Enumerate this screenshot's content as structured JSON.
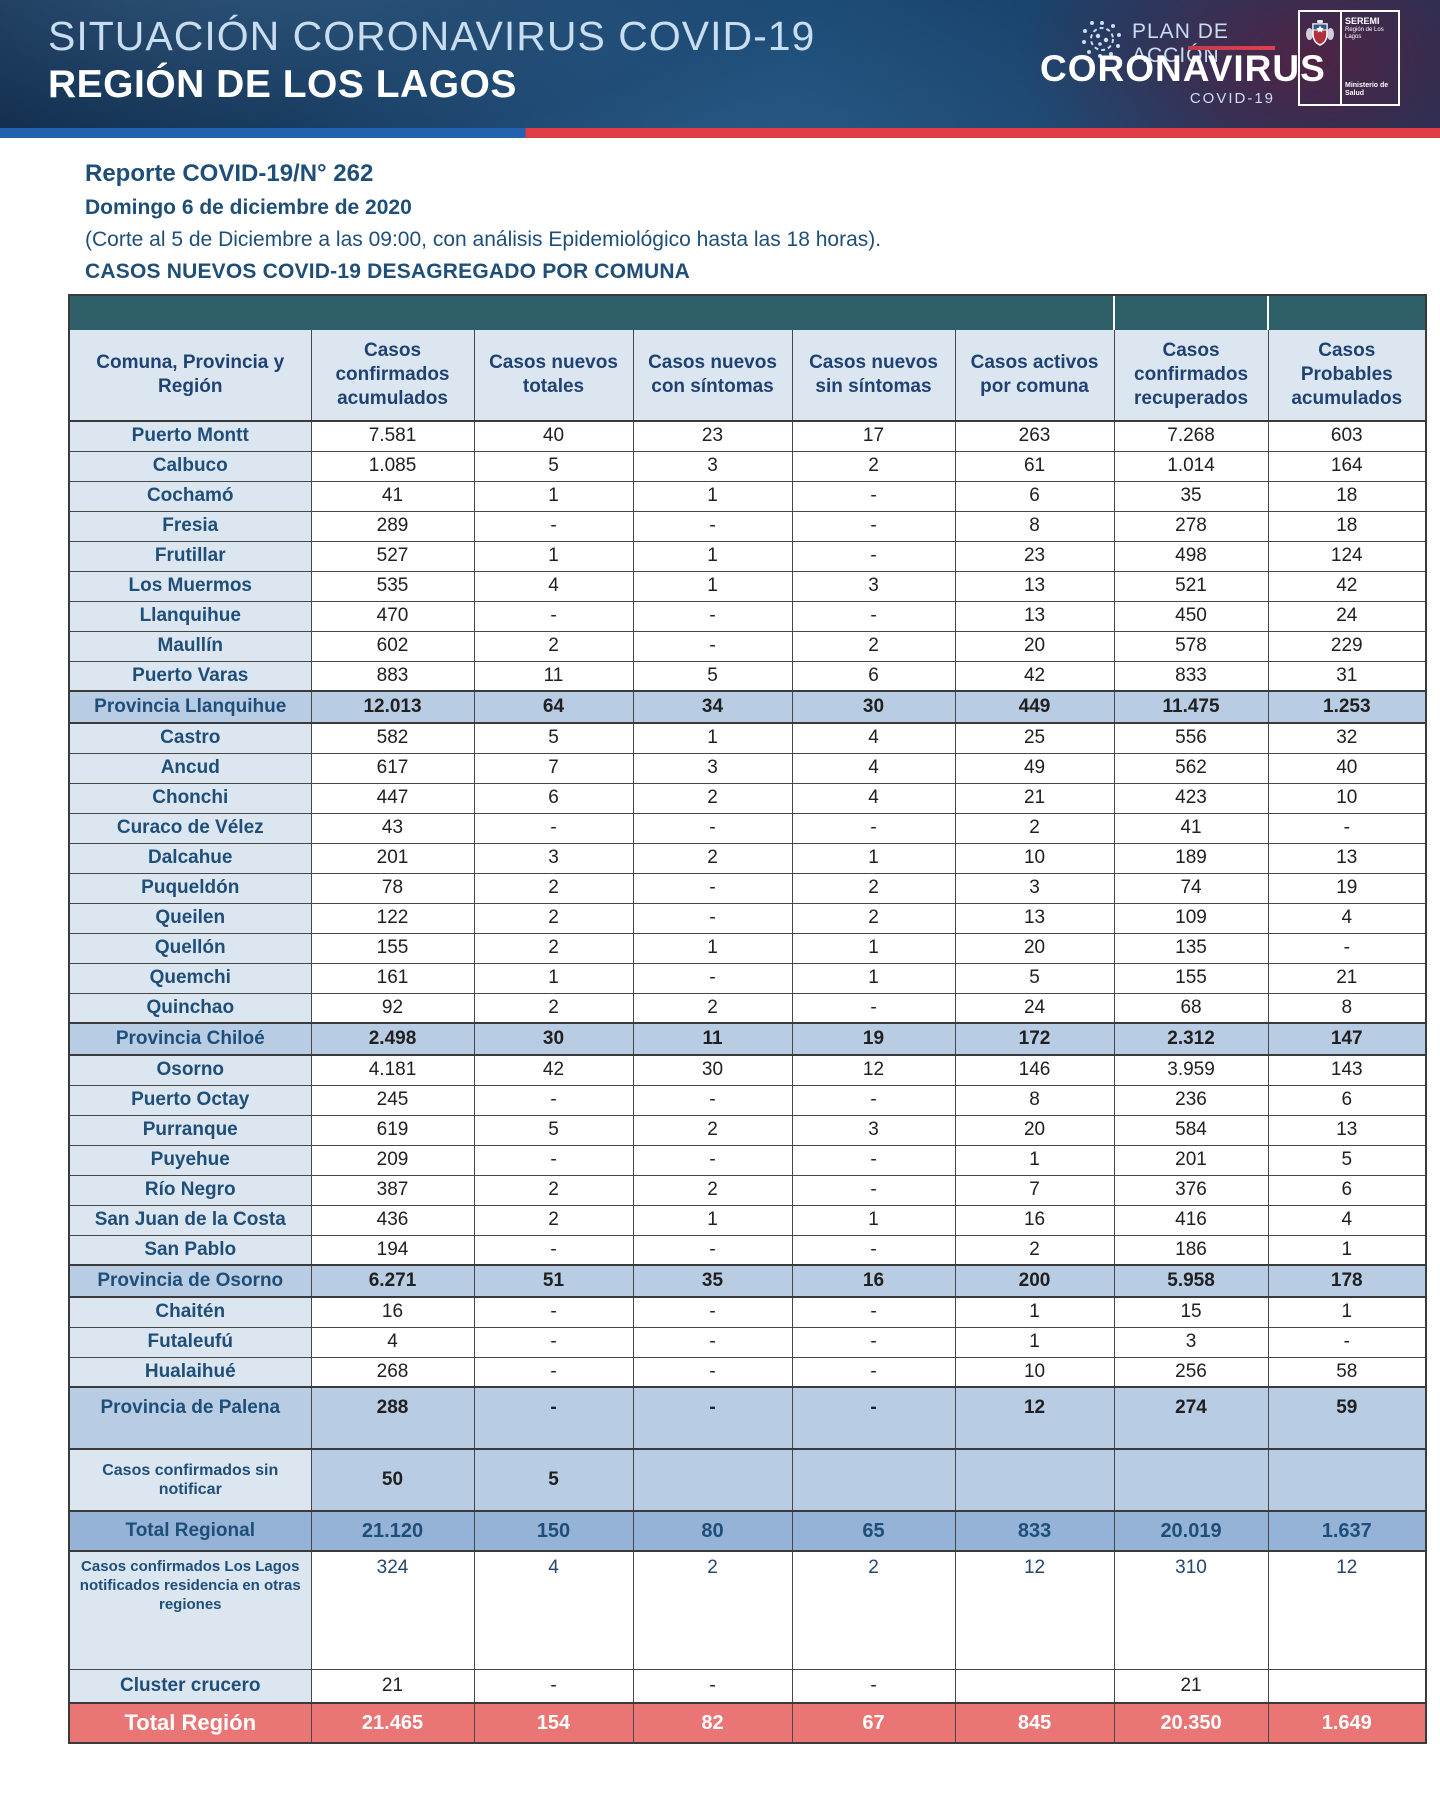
{
  "banner": {
    "title_line1": "SITUACIÓN CORONAVIRUS COVID-19",
    "title_line2": "REGIÓN DE LOS LAGOS",
    "plan_label": "PLAN DE ACCIÓN",
    "brand": "CORONAVIRUS",
    "brand_sub": "COVID-19",
    "logo": {
      "seremi": "SEREMI",
      "region": "Región de Los Lagos",
      "ministry": "Ministerio de Salud"
    }
  },
  "report": {
    "title": "Reporte COVID-19/N° 262",
    "date": "Domingo 6 de diciembre de 2020",
    "note": "(Corte al 5 de Diciembre a las 09:00, con análisis Epidemiológico hasta las 18 horas).",
    "section_title": "CASOS NUEVOS COVID-19 DESAGREGADO POR COMUNA"
  },
  "table": {
    "columns": [
      "Comuna, Provincia y Región",
      "Casos confirmados acumulados",
      "Casos nuevos totales",
      "Casos nuevos con síntomas",
      "Casos nuevos sin síntomas",
      "Casos activos por comuna",
      "Casos confirmados recuperados",
      "Casos Probables acumulados"
    ],
    "rows": [
      {
        "label": "Puerto Montt",
        "type": "comuna",
        "values": [
          "7.581",
          "40",
          "23",
          "17",
          "263",
          "7.268",
          "603"
        ]
      },
      {
        "label": "Calbuco",
        "type": "comuna",
        "values": [
          "1.085",
          "5",
          "3",
          "2",
          "61",
          "1.014",
          "164"
        ]
      },
      {
        "label": "Cochamó",
        "type": "comuna",
        "values": [
          "41",
          "1",
          "1",
          "-",
          "6",
          "35",
          "18"
        ]
      },
      {
        "label": "Fresia",
        "type": "comuna",
        "values": [
          "289",
          "-",
          "-",
          "-",
          "8",
          "278",
          "18"
        ]
      },
      {
        "label": "Frutillar",
        "type": "comuna",
        "values": [
          "527",
          "1",
          "1",
          "-",
          "23",
          "498",
          "124"
        ]
      },
      {
        "label": "Los Muermos",
        "type": "comuna",
        "values": [
          "535",
          "4",
          "1",
          "3",
          "13",
          "521",
          "42"
        ]
      },
      {
        "label": "Llanquihue",
        "type": "comuna",
        "values": [
          "470",
          "-",
          "-",
          "-",
          "13",
          "450",
          "24"
        ]
      },
      {
        "label": "Maullín",
        "type": "comuna",
        "values": [
          "602",
          "2",
          "-",
          "2",
          "20",
          "578",
          "229"
        ]
      },
      {
        "label": "Puerto Varas",
        "type": "comuna",
        "values": [
          "883",
          "11",
          "5",
          "6",
          "42",
          "833",
          "31"
        ]
      },
      {
        "label": "Provincia Llanquihue",
        "type": "province",
        "values": [
          "12.013",
          "64",
          "34",
          "30",
          "449",
          "11.475",
          "1.253"
        ]
      },
      {
        "label": "Castro",
        "type": "comuna",
        "values": [
          "582",
          "5",
          "1",
          "4",
          "25",
          "556",
          "32"
        ]
      },
      {
        "label": "Ancud",
        "type": "comuna",
        "values": [
          "617",
          "7",
          "3",
          "4",
          "49",
          "562",
          "40"
        ]
      },
      {
        "label": "Chonchi",
        "type": "comuna",
        "values": [
          "447",
          "6",
          "2",
          "4",
          "21",
          "423",
          "10"
        ]
      },
      {
        "label": "Curaco de Vélez",
        "type": "comuna",
        "values": [
          "43",
          "-",
          "-",
          "-",
          "2",
          "41",
          "-"
        ]
      },
      {
        "label": "Dalcahue",
        "type": "comuna",
        "values": [
          "201",
          "3",
          "2",
          "1",
          "10",
          "189",
          "13"
        ]
      },
      {
        "label": "Puqueldón",
        "type": "comuna",
        "values": [
          "78",
          "2",
          "-",
          "2",
          "3",
          "74",
          "19"
        ]
      },
      {
        "label": "Queilen",
        "type": "comuna",
        "values": [
          "122",
          "2",
          "-",
          "2",
          "13",
          "109",
          "4"
        ]
      },
      {
        "label": "Quellón",
        "type": "comuna",
        "values": [
          "155",
          "2",
          "1",
          "1",
          "20",
          "135",
          "-"
        ]
      },
      {
        "label": "Quemchi",
        "type": "comuna",
        "values": [
          "161",
          "1",
          "-",
          "1",
          "5",
          "155",
          "21"
        ]
      },
      {
        "label": "Quinchao",
        "type": "comuna",
        "values": [
          "92",
          "2",
          "2",
          "-",
          "24",
          "68",
          "8"
        ]
      },
      {
        "label": "Provincia Chiloé",
        "type": "province",
        "values": [
          "2.498",
          "30",
          "11",
          "19",
          "172",
          "2.312",
          "147"
        ]
      },
      {
        "label": "Osorno",
        "type": "comuna",
        "values": [
          "4.181",
          "42",
          "30",
          "12",
          "146",
          "3.959",
          "143"
        ]
      },
      {
        "label": "Puerto Octay",
        "type": "comuna",
        "values": [
          "245",
          "-",
          "-",
          "-",
          "8",
          "236",
          "6"
        ]
      },
      {
        "label": "Purranque",
        "type": "comuna",
        "values": [
          "619",
          "5",
          "2",
          "3",
          "20",
          "584",
          "13"
        ]
      },
      {
        "label": "Puyehue",
        "type": "comuna",
        "values": [
          "209",
          "-",
          "-",
          "-",
          "1",
          "201",
          "5"
        ]
      },
      {
        "label": "Río Negro",
        "type": "comuna",
        "values": [
          "387",
          "2",
          "2",
          "-",
          "7",
          "376",
          "6"
        ]
      },
      {
        "label": "San Juan de la Costa",
        "type": "comuna",
        "values": [
          "436",
          "2",
          "1",
          "1",
          "16",
          "416",
          "4"
        ]
      },
      {
        "label": "San Pablo",
        "type": "comuna",
        "values": [
          "194",
          "-",
          "-",
          "-",
          "2",
          "186",
          "1"
        ]
      },
      {
        "label": "Provincia de Osorno",
        "type": "province",
        "values": [
          "6.271",
          "51",
          "35",
          "16",
          "200",
          "5.958",
          "178"
        ]
      },
      {
        "label": "Chaitén",
        "type": "comuna",
        "values": [
          "16",
          "-",
          "-",
          "-",
          "1",
          "15",
          "1"
        ]
      },
      {
        "label": "Futaleufú",
        "type": "comuna",
        "values": [
          "4",
          "-",
          "-",
          "-",
          "1",
          "3",
          "-"
        ]
      },
      {
        "label": "Hualaihué",
        "type": "comuna",
        "values": [
          "268",
          "-",
          "-",
          "-",
          "10",
          "256",
          "58"
        ]
      },
      {
        "label": "Provincia de Palena",
        "type": "province-tall",
        "values": [
          "288",
          "-",
          "-",
          "-",
          "12",
          "274",
          "59"
        ]
      },
      {
        "label": "Casos confirmados sin notificar",
        "type": "special",
        "values": [
          "50",
          "5",
          "",
          "",
          "",
          "",
          ""
        ]
      },
      {
        "label": "Total Regional",
        "type": "total",
        "values": [
          "21.120",
          "150",
          "80",
          "65",
          "833",
          "20.019",
          "1.637"
        ]
      },
      {
        "label": "Casos confirmados Los Lagos  notificados residencia en otras regiones",
        "type": "otras",
        "values": [
          "324",
          "4",
          "2",
          "2",
          "12",
          "310",
          "12"
        ]
      },
      {
        "label": "Cluster crucero",
        "type": "cluster",
        "values": [
          "21",
          "-",
          "-",
          "-",
          "",
          "21",
          ""
        ]
      },
      {
        "label": "Total Región",
        "type": "grand",
        "values": [
          "21.465",
          "154",
          "82",
          "67",
          "845",
          "20.350",
          "1.649"
        ]
      }
    ]
  },
  "colors": {
    "accent_navy": "#1F4E79",
    "teal_band": "#2F5F68",
    "header_bg": "#DCE6F1",
    "province_bg": "#B8CCE4",
    "total_bg": "#95B3D7",
    "grand_total_bg": "#E97575",
    "stripe_blue": "#2362AE",
    "stripe_red": "#E13B45"
  }
}
